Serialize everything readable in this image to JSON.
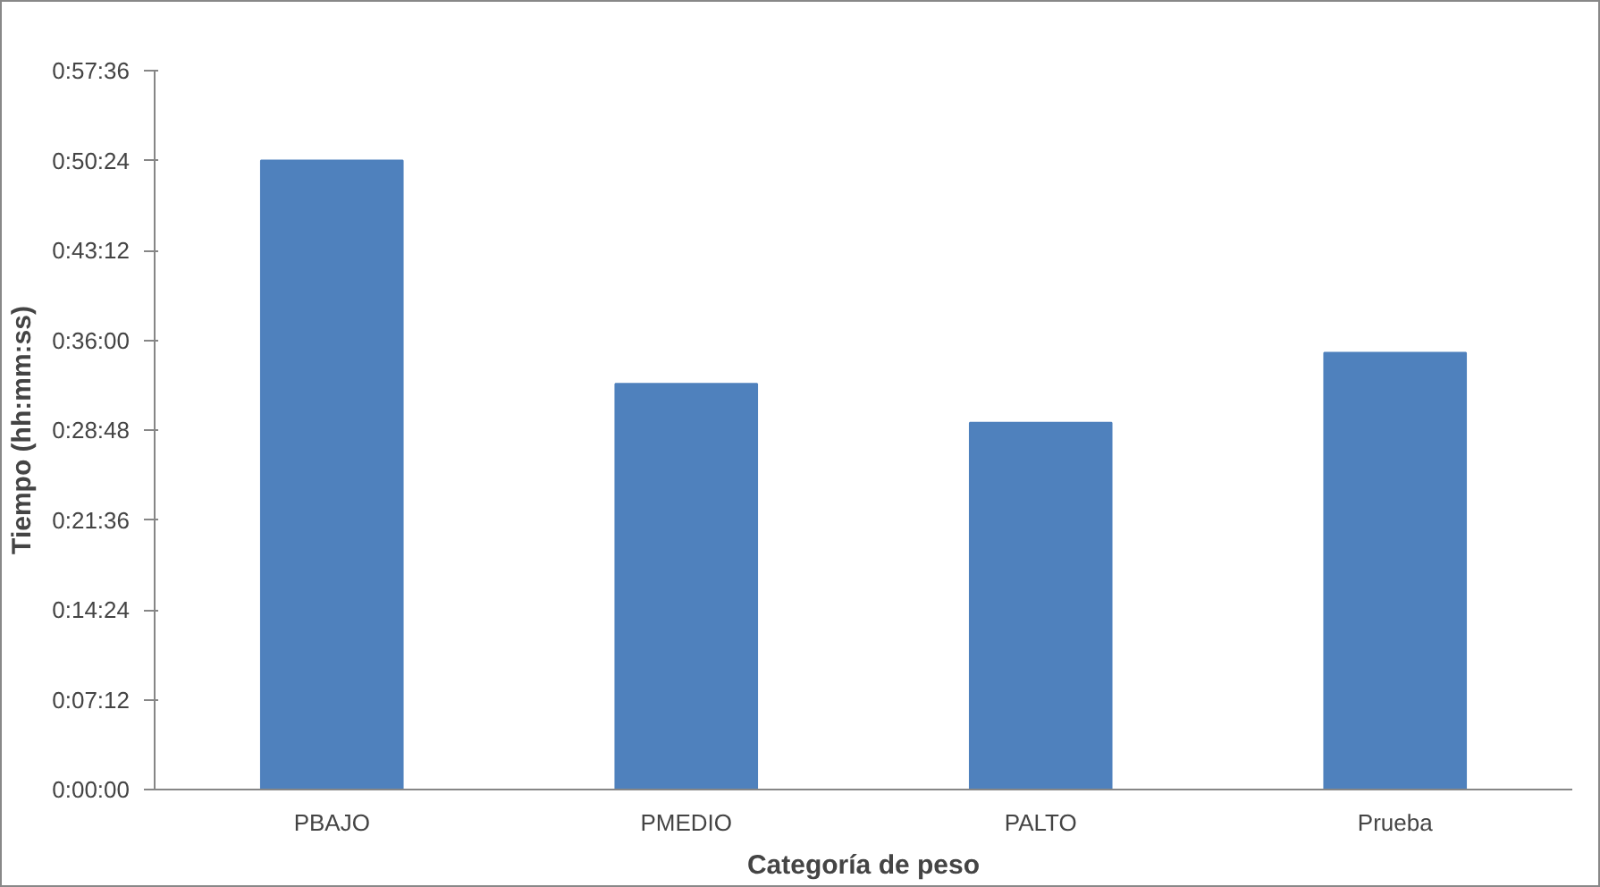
{
  "chart_data": {
    "type": "bar",
    "xlabel": "Categoría de peso",
    "ylabel": "Tiempo (hh:mm:ss)",
    "categories": [
      "PBAJO",
      "PMEDIO",
      "PALTO",
      "Prueba"
    ],
    "values": [
      50.4,
      32.5,
      29.4,
      35.0
    ],
    "color": "#4f81bd",
    "ylim": [
      0,
      57.6
    ],
    "yticks": [
      {
        "value": 0,
        "label": "0:00:00"
      },
      {
        "value": 7.2,
        "label": "0:07:12"
      },
      {
        "value": 14.4,
        "label": "0:14:24"
      },
      {
        "value": 21.6,
        "label": "0:21:36"
      },
      {
        "value": 28.8,
        "label": "0:28:48"
      },
      {
        "value": 36,
        "label": "0:36:00"
      },
      {
        "value": 43.2,
        "label": "0:43:12"
      },
      {
        "value": 50.4,
        "label": "0:50:24"
      },
      {
        "value": 57.6,
        "label": "0:57:36"
      }
    ],
    "grid": false
  }
}
